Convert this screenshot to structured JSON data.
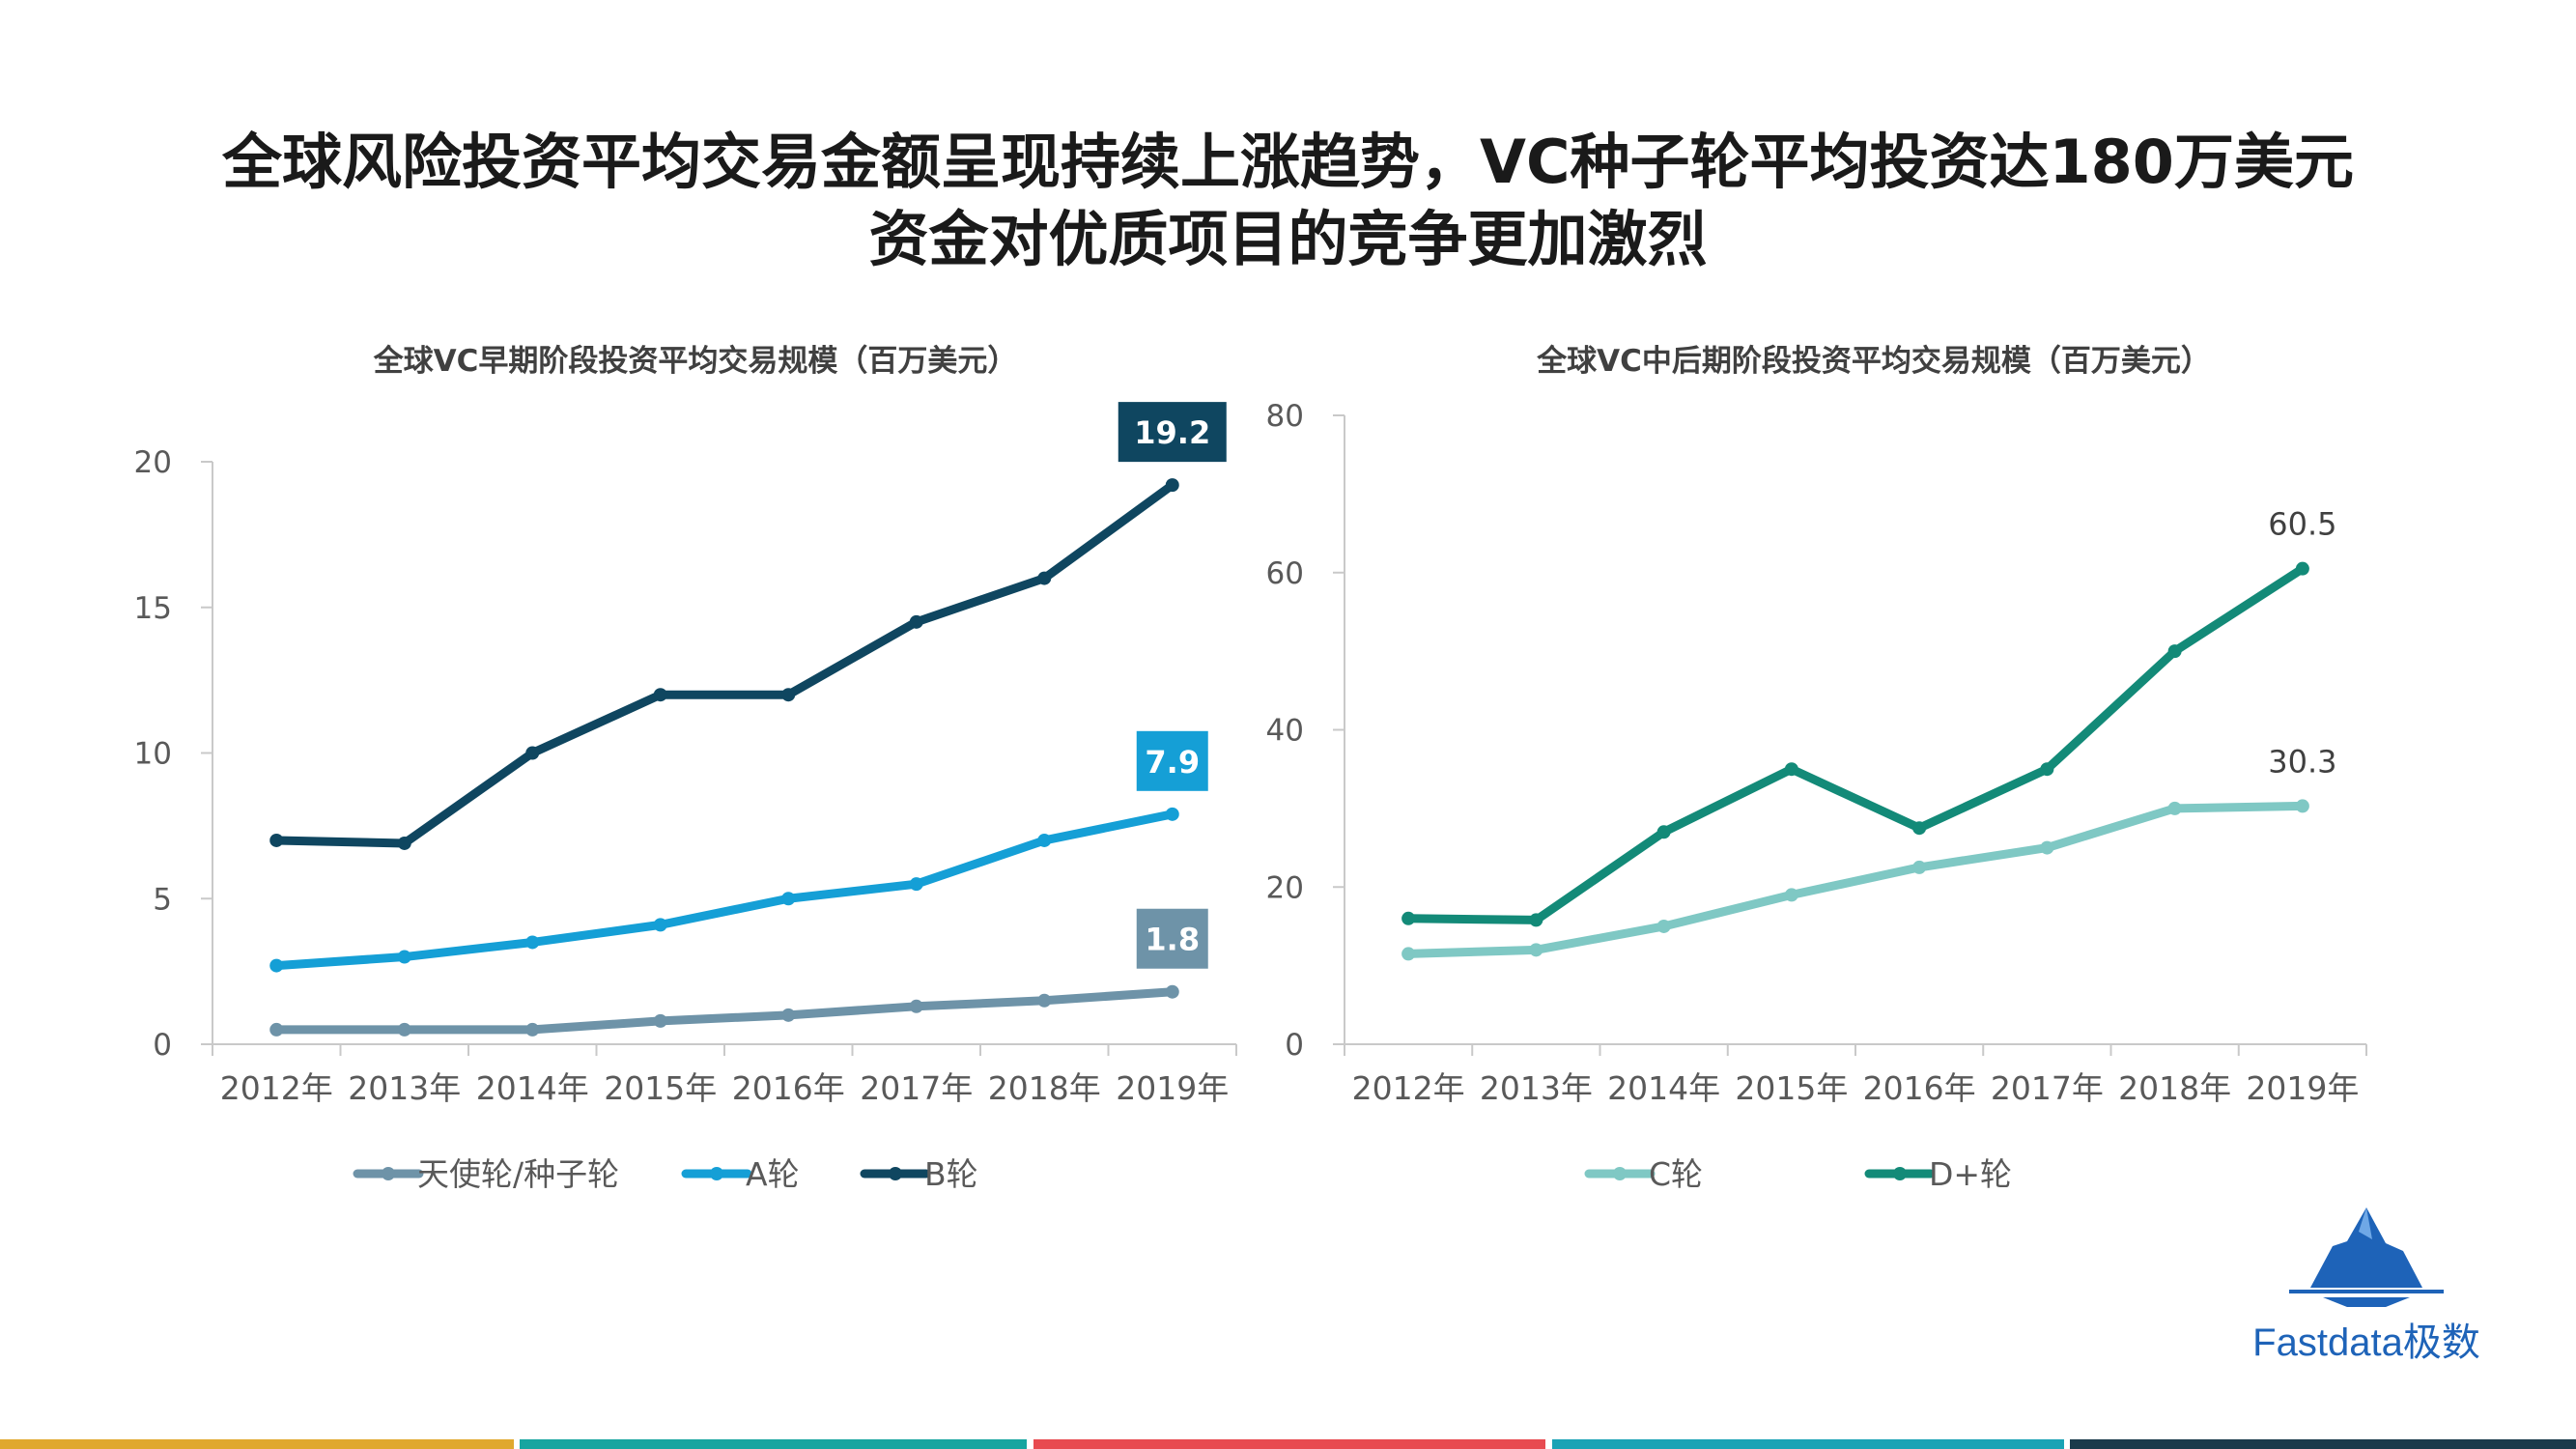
{
  "headline": {
    "line1": "全球风险投资平均交易金额呈现持续上涨趋势，VC种子轮平均投资达180万美元",
    "line2": "资金对优质项目的竞争更加激烈"
  },
  "logo": {
    "text": "Fastdata极数",
    "icon": "iceberg-icon",
    "color": "#1e63b8"
  },
  "footer_colors": [
    "#e0a82e",
    "#17a5a0",
    "#e84a50",
    "#1aa3b5",
    "#1b3a4b"
  ],
  "chart_data": [
    {
      "type": "line",
      "title": "全球VC早期阶段投资平均交易规模（百万美元）",
      "categories": [
        "2012年",
        "2013年",
        "2014年",
        "2015年",
        "2016年",
        "2017年",
        "2018年",
        "2019年"
      ],
      "ylim": [
        0,
        20
      ],
      "yticks": [
        0,
        5,
        10,
        15,
        20
      ],
      "grid": false,
      "legend": "bottom",
      "series": [
        {
          "name": "天使轮/种子轮",
          "color": "#6e93a8",
          "values": [
            0.5,
            0.5,
            0.5,
            0.8,
            1.0,
            1.3,
            1.5,
            1.8
          ],
          "end_label": "1.8",
          "label_style": "box"
        },
        {
          "name": "A轮",
          "color": "#159fd6",
          "values": [
            2.7,
            3.0,
            3.5,
            4.1,
            5.0,
            5.5,
            7.0,
            7.9
          ],
          "end_label": "7.9",
          "label_style": "box"
        },
        {
          "name": "B轮",
          "color": "#0f4660",
          "values": [
            7.0,
            6.9,
            10.0,
            12.0,
            12.0,
            14.5,
            16.0,
            19.2
          ],
          "end_label": "19.2",
          "label_style": "box"
        }
      ]
    },
    {
      "type": "line",
      "title": "全球VC中后期阶段投资平均交易规模（百万美元）",
      "categories": [
        "2012年",
        "2013年",
        "2014年",
        "2015年",
        "2016年",
        "2017年",
        "2018年",
        "2019年"
      ],
      "ylim": [
        0,
        80
      ],
      "yticks": [
        0,
        20,
        40,
        60,
        80
      ],
      "grid": false,
      "legend": "bottom",
      "series": [
        {
          "name": "C轮",
          "color": "#7fc8c4",
          "values": [
            11.5,
            12.0,
            15.0,
            19.0,
            22.5,
            25.0,
            30.0,
            30.3
          ],
          "end_label": "30.3",
          "label_style": "text"
        },
        {
          "name": "D+轮",
          "color": "#138a78",
          "values": [
            16.0,
            15.8,
            27.0,
            35.0,
            27.5,
            35.0,
            50.0,
            60.5
          ],
          "end_label": "60.5",
          "label_style": "text"
        }
      ]
    }
  ]
}
